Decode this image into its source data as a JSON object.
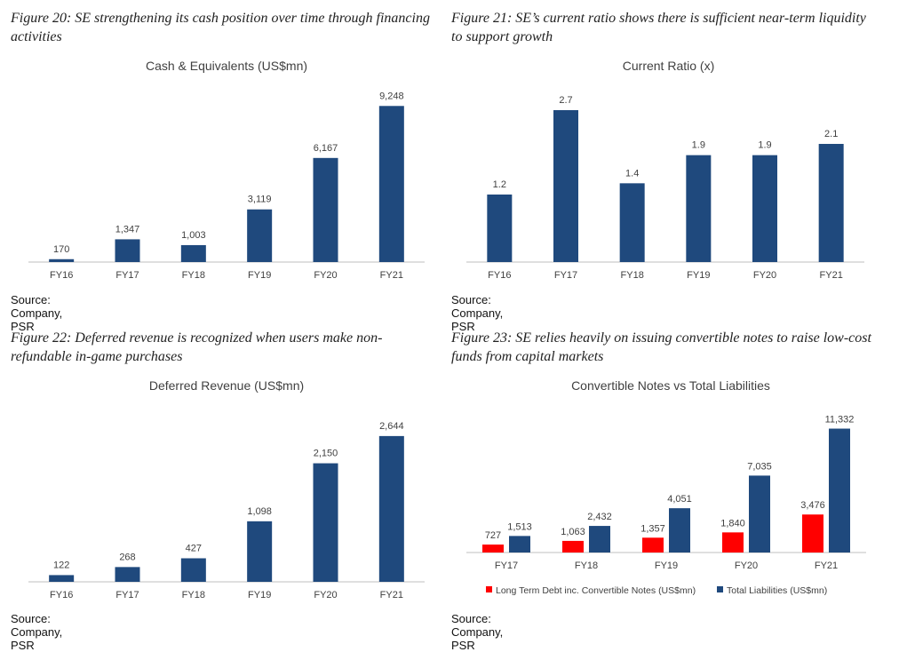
{
  "colors": {
    "navy": "#1f497d",
    "red": "#ff0000",
    "axis": "#bfbfbf",
    "text": "#404040"
  },
  "panels": [
    {
      "caption": "Figure 20: SE strengthening its cash position over time through financing activities",
      "source": "Source: Company, PSR"
    },
    {
      "caption": "Figure 21: SE’s current ratio shows there is sufficient near-term liquidity to support growth",
      "source": "Source: Company, PSR"
    },
    {
      "caption": "Figure 22: Deferred revenue is recognized when users make non-refundable in-game purchases",
      "source": "Source: Company, PSR"
    },
    {
      "caption": "Figure 23: SE relies heavily on issuing convertible notes to raise low-cost funds from capital markets",
      "source": "Source: Company, PSR"
    }
  ],
  "chart_data": [
    {
      "type": "bar",
      "title": "Cash & Equivalents (US$mn)",
      "categories": [
        "FY16",
        "FY17",
        "FY18",
        "FY19",
        "FY20",
        "FY21"
      ],
      "values": [
        170,
        1347,
        1003,
        3119,
        6167,
        9248
      ],
      "value_labels": [
        "170",
        "1,347",
        "1,003",
        "3,119",
        "6,167",
        "9,248"
      ],
      "ylim": [
        0,
        10000
      ],
      "grid": false
    },
    {
      "type": "bar",
      "title": "Current Ratio (x)",
      "categories": [
        "FY16",
        "FY17",
        "FY18",
        "FY19",
        "FY20",
        "FY21"
      ],
      "values": [
        1.2,
        2.7,
        1.4,
        1.9,
        1.9,
        2.1
      ],
      "value_labels": [
        "1.2",
        "2.7",
        "1.4",
        "1.9",
        "1.9",
        "2.1"
      ],
      "ylim": [
        0,
        3
      ],
      "grid": false
    },
    {
      "type": "bar",
      "title": "Deferred Revenue (US$mn)",
      "categories": [
        "FY16",
        "FY17",
        "FY18",
        "FY19",
        "FY20",
        "FY21"
      ],
      "values": [
        122,
        268,
        427,
        1098,
        2150,
        2644
      ],
      "value_labels": [
        "122",
        "268",
        "427",
        "1,098",
        "2,150",
        "2,644"
      ],
      "ylim": [
        0,
        2900
      ],
      "grid": false
    },
    {
      "type": "bar",
      "title": "Convertible Notes vs Total Liabilities",
      "categories": [
        "FY17",
        "FY18",
        "FY19",
        "FY20",
        "FY21"
      ],
      "series": [
        {
          "name": "Long Term Debt inc. Convertible Notes (US$mn)",
          "values": [
            727,
            1063,
            1357,
            1840,
            3476
          ],
          "value_labels": [
            "727",
            "1,063",
            "1,357",
            "1,840",
            "3,476"
          ]
        },
        {
          "name": "Total Liabilities (US$mn)",
          "values": [
            1513,
            2432,
            4051,
            7035,
            11332
          ],
          "value_labels": [
            "1,513",
            "2,432",
            "4,051",
            "7,035",
            "11,332"
          ]
        }
      ],
      "ylim": [
        0,
        13000
      ],
      "legend": "bottom",
      "grid": false
    }
  ]
}
